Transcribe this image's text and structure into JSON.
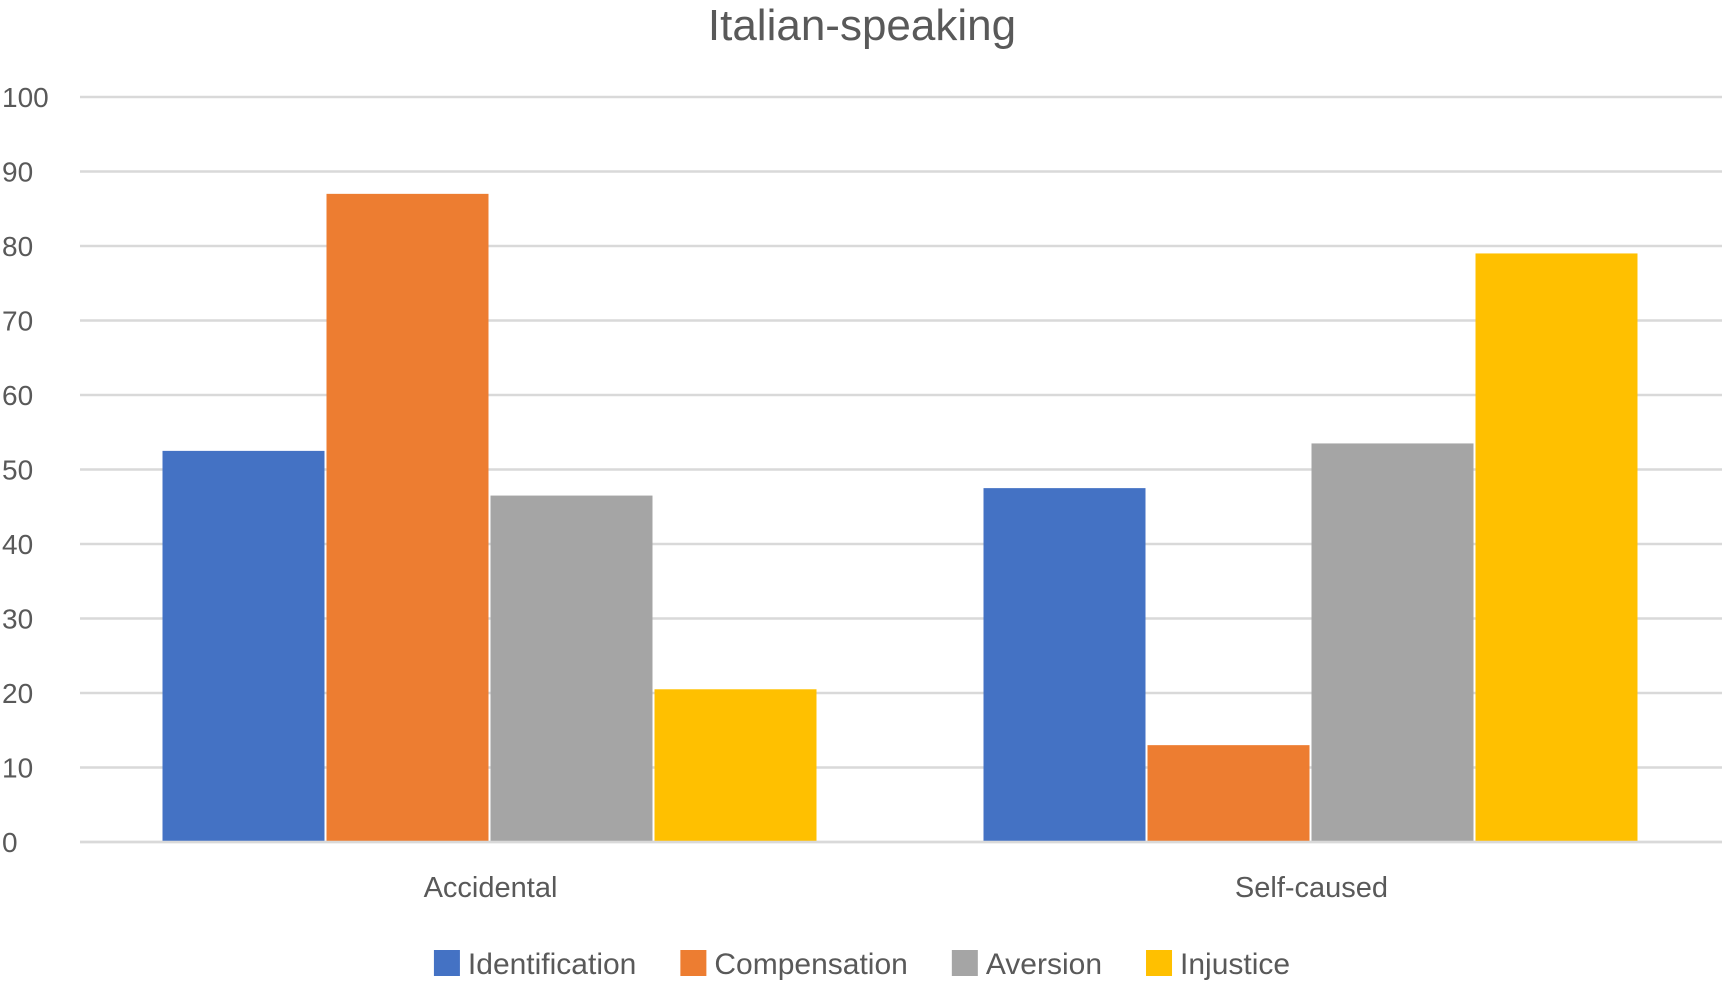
{
  "chart_data": {
    "type": "bar",
    "title": "Italian-speaking",
    "xlabel": "",
    "ylabel": "",
    "categories": [
      "Accidental",
      "Self-caused"
    ],
    "series": [
      {
        "name": "Identification",
        "values": [
          52.5,
          47.5
        ],
        "color": "#4472C4"
      },
      {
        "name": "Compensation",
        "values": [
          87,
          13
        ],
        "color": "#ED7D31"
      },
      {
        "name": "Aversion",
        "values": [
          46.5,
          53.5
        ],
        "color": "#A5A5A5"
      },
      {
        "name": "Injustice",
        "values": [
          20.5,
          79
        ],
        "color": "#FFC000"
      }
    ],
    "ylim": [
      0,
      100
    ],
    "yticks": [
      0,
      10,
      20,
      30,
      40,
      50,
      60,
      70,
      80,
      90,
      100
    ],
    "grid": true,
    "legend": "bottom",
    "gridColor": "#D9D9D9",
    "textColor": "#595959"
  }
}
